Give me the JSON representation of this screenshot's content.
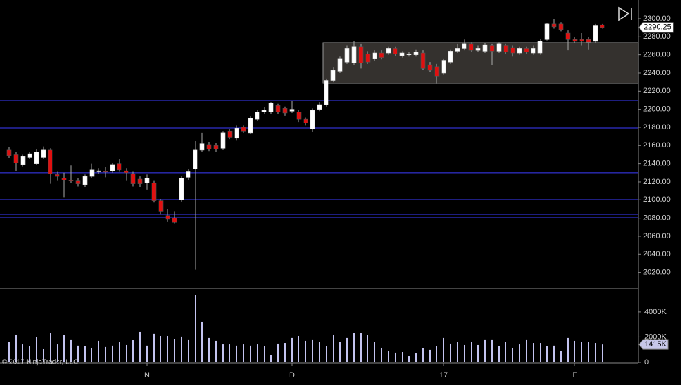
{
  "chart_data": {
    "type": "candlestick",
    "copyright": "© 2017 NinjaTrader, LLC",
    "categories": [
      null,
      null,
      null,
      null,
      null,
      null,
      null,
      null,
      null,
      null,
      null,
      null,
      null,
      null,
      null,
      null,
      null,
      null,
      null,
      null,
      "N",
      null,
      null,
      null,
      null,
      null,
      null,
      null,
      null,
      null,
      null,
      null,
      null,
      null,
      null,
      null,
      null,
      null,
      null,
      null,
      null,
      "D",
      null,
      null,
      null,
      null,
      null,
      null,
      null,
      null,
      null,
      null,
      null,
      null,
      null,
      null,
      null,
      null,
      null,
      null,
      null,
      null,
      null,
      "17",
      null,
      null,
      null,
      null,
      null,
      null,
      null,
      null,
      null,
      null,
      null,
      null,
      null,
      null,
      null,
      null,
      null,
      null,
      "F",
      null,
      null,
      null,
      null
    ],
    "open": [
      2155,
      2150,
      2139,
      2147,
      2140,
      2147,
      2155,
      2128,
      2124,
      2122,
      2121,
      2117,
      2126,
      2131,
      2131.5,
      2132,
      2140,
      2132,
      2129,
      2123,
      2119,
      2119,
      2099,
      2083,
      2080,
      2100,
      2125,
      2134,
      2155,
      2161,
      2160,
      2157,
      2176,
      2168,
      2180,
      2174,
      2189,
      2197,
      2197,
      2204,
      2201,
      2198,
      2197,
      2189,
      2178,
      2200,
      2205,
      2232,
      2242,
      2252,
      2251,
      2269,
      2261,
      2256,
      2262,
      2262,
      2267,
      2259,
      2260,
      2260,
      2262,
      2249,
      2247,
      2240,
      2252,
      2264,
      2267,
      2272,
      2265,
      2264,
      2270,
      2264,
      2270,
      2268,
      2262,
      2267,
      2262,
      2262,
      2277,
      2294,
      2294,
      2284,
      2277,
      2277,
      2277,
      2275,
      2293
    ],
    "high": [
      2158,
      2153,
      2150,
      2153,
      2156,
      2159,
      2157,
      2131,
      2130,
      2138,
      2124,
      2128,
      2140,
      2135,
      2136,
      2141,
      2145,
      2135,
      2131,
      2126,
      2128,
      2121,
      2101,
      2090,
      2087,
      2126,
      2134,
      2165,
      2174,
      2164,
      2163,
      2176,
      2178,
      2182,
      2182,
      2192,
      2199,
      2202,
      2208,
      2206,
      2203,
      2209,
      2199,
      2191,
      2201,
      2208,
      2234,
      2246,
      2258,
      2270,
      2275,
      2272,
      2264,
      2265,
      2265,
      2269,
      2269,
      2264,
      2263,
      2266,
      2265,
      2252,
      2250,
      2256,
      2266,
      2272,
      2277,
      2274,
      2270,
      2273,
      2272,
      2274,
      2272,
      2270,
      2269,
      2269,
      2270,
      2278,
      2295,
      2300,
      2296,
      2287,
      2280,
      2284,
      2280,
      2294,
      2294
    ],
    "low": [
      2146,
      2132,
      2137,
      2145,
      2139,
      2145,
      2118,
      2121,
      2103,
      2119,
      2115,
      2114,
      2124,
      2129,
      2125,
      2130,
      2131,
      2121,
      2115,
      2114,
      2111,
      2097,
      2084,
      2076,
      2074,
      2098,
      2122,
      2023,
      2153,
      2154,
      2153,
      2155,
      2167,
      2166,
      2174,
      2173,
      2187,
      2195,
      2195,
      2195,
      2193,
      2196,
      2186,
      2182,
      2175,
      2198,
      2203,
      2230,
      2240,
      2250,
      2249,
      2245,
      2250,
      2253,
      2255,
      2260,
      2259,
      2257,
      2258,
      2258,
      2243,
      2241,
      2228,
      2238,
      2250,
      2262,
      2265,
      2263,
      2263,
      2262,
      2249,
      2262,
      2261,
      2258,
      2260,
      2261,
      2260,
      2260,
      2276,
      2289,
      2286,
      2265,
      2273,
      2270,
      2266,
      2273,
      2289
    ],
    "close": [
      2149,
      2141,
      2148,
      2151,
      2153,
      2155,
      2129,
      2126,
      2122,
      2121,
      2118,
      2126,
      2133,
      2132,
      2131,
      2139,
      2133,
      2130,
      2118,
      2118,
      2124,
      2099,
      2087,
      2079,
      2075,
      2124,
      2131,
      2155,
      2162,
      2156,
      2156,
      2174,
      2169,
      2179,
      2176,
      2190,
      2197,
      2199,
      2207,
      2197,
      2196,
      2200,
      2189,
      2185,
      2199,
      2205,
      2232,
      2243,
      2256,
      2267,
      2269,
      2251,
      2252,
      2262,
      2257,
      2267,
      2261,
      2262,
      2261,
      2263,
      2245,
      2243,
      2236,
      2254,
      2264,
      2267,
      2272,
      2265,
      2267,
      2271,
      2264,
      2272,
      2263,
      2262,
      2267,
      2263,
      2267,
      2275,
      2294,
      2291,
      2288,
      2277,
      2275,
      2275,
      2274,
      2292,
      2290.25
    ],
    "ylim": [
      2003,
      2320.5
    ],
    "yticks": [
      {
        "value": 2020,
        "label": "2020.00"
      },
      {
        "value": 2040,
        "label": "2040.00"
      },
      {
        "value": 2060,
        "label": "2060.00"
      },
      {
        "value": 2080,
        "label": "2080.00"
      },
      {
        "value": 2100,
        "label": "2100.00"
      },
      {
        "value": 2120,
        "label": "2120.00"
      },
      {
        "value": 2140,
        "label": "2140.00"
      },
      {
        "value": 2160,
        "label": "2160.00"
      },
      {
        "value": 2180,
        "label": "2180.00"
      },
      {
        "value": 2200,
        "label": "2200.00"
      },
      {
        "value": 2220,
        "label": "2220.00"
      },
      {
        "value": 2240,
        "label": "2240.00"
      },
      {
        "value": 2260,
        "label": "2260.00"
      },
      {
        "value": 2280,
        "label": "2280.00"
      },
      {
        "value": 2300,
        "label": "2300.00"
      }
    ],
    "last_price": 2290.25,
    "horizontal_lines": [
      2209.6,
      2179.2,
      2129.9,
      2100.2,
      2084.3,
      2080.5
    ],
    "zone": {
      "start_index": 46,
      "from": 2228.6,
      "to": 2273.4
    },
    "up_color": "#ffffff",
    "down_color": "#e01010",
    "line_color": "#3c3cff",
    "volume": {
      "color": "#c4c4f0",
      "values": [
        1590000,
        2190000,
        1420000,
        1260000,
        1970000,
        1040000,
        2300000,
        1420000,
        2140000,
        1810000,
        1320000,
        1260000,
        1150000,
        1700000,
        1210000,
        1320000,
        1590000,
        1370000,
        1750000,
        2410000,
        1320000,
        2250000,
        2080000,
        2080000,
        1860000,
        2030000,
        1810000,
        5320000,
        3230000,
        1920000,
        1700000,
        1420000,
        1420000,
        1320000,
        1420000,
        1320000,
        1420000,
        1260000,
        600000,
        1480000,
        1530000,
        1920000,
        2080000,
        1700000,
        1810000,
        1640000,
        1260000,
        2190000,
        1640000,
        1920000,
        2300000,
        2300000,
        2140000,
        1640000,
        1150000,
        930000,
        770000,
        820000,
        490000,
        710000,
        1100000,
        990000,
        1260000,
        1920000,
        1480000,
        1590000,
        1370000,
        1640000,
        1370000,
        1810000,
        1810000,
        1260000,
        1590000,
        1150000,
        1420000,
        1810000,
        1530000,
        1530000,
        1260000,
        1320000,
        930000,
        1920000,
        1700000,
        1640000,
        1640000,
        1530000,
        1415000
      ],
      "last": {
        "value": 1415000,
        "label": "1415K"
      },
      "ylim": [
        0,
        5800000
      ],
      "yticks": [
        0,
        {
          "value": 2000000,
          "label": "2000K"
        },
        {
          "value": 4000000,
          "label": "4000K"
        }
      ]
    }
  }
}
